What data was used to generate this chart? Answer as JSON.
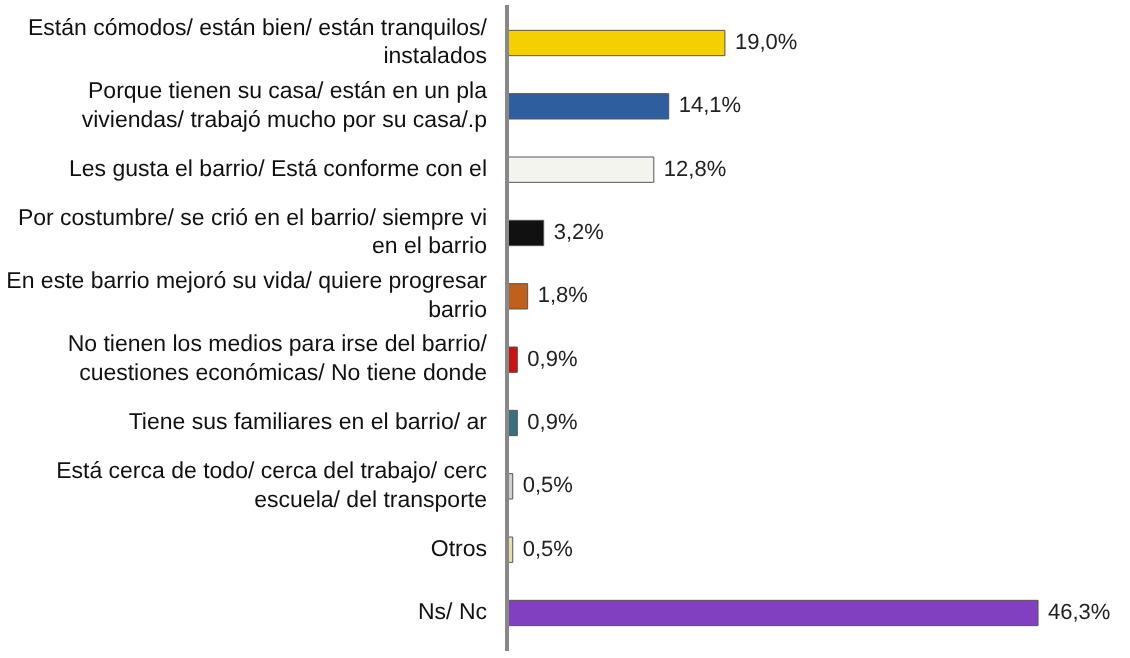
{
  "chart_data": {
    "type": "bar",
    "orientation": "horizontal",
    "categories": [
      "Están cómodos/ están bien/ están tranquilos/\ninstalados",
      "Porque tienen su casa/ están en un pla\nviviendas/ trabajó mucho por su casa/.p",
      "Les gusta el barrio/ Está conforme con el",
      "Por costumbre/ se crió en el barrio/ siempre vi\nen el barrio",
      "En este barrio mejoró su vida/ quiere progresar\nbarrio",
      "No tienen los medios para irse del barrio/\ncuestiones económicas/ No tiene donde",
      "Tiene sus familiares en el barrio/ ar",
      "Está cerca de todo/ cerca del trabajo/ cerc\nescuela/ del transporte",
      "Otros",
      "Ns/ Nc"
    ],
    "values": [
      19.0,
      14.1,
      12.8,
      3.2,
      1.8,
      0.9,
      0.9,
      0.5,
      0.5,
      46.3
    ],
    "colors": [
      "#f5d000",
      "#2e5e9e",
      "#f4f4ee",
      "#111111",
      "#c0601a",
      "#cc1111",
      "#3a6f80",
      "#d0d0d0",
      "#e8dfb0",
      "#8040c0"
    ],
    "value_labels": [
      "19,0%",
      "14,1%",
      "12,8%",
      "3,2%",
      "1,8%",
      "0,9%",
      "0,9%",
      "0,5%",
      "0,5%",
      "46,3%"
    ],
    "tick_labels": "y"
  }
}
